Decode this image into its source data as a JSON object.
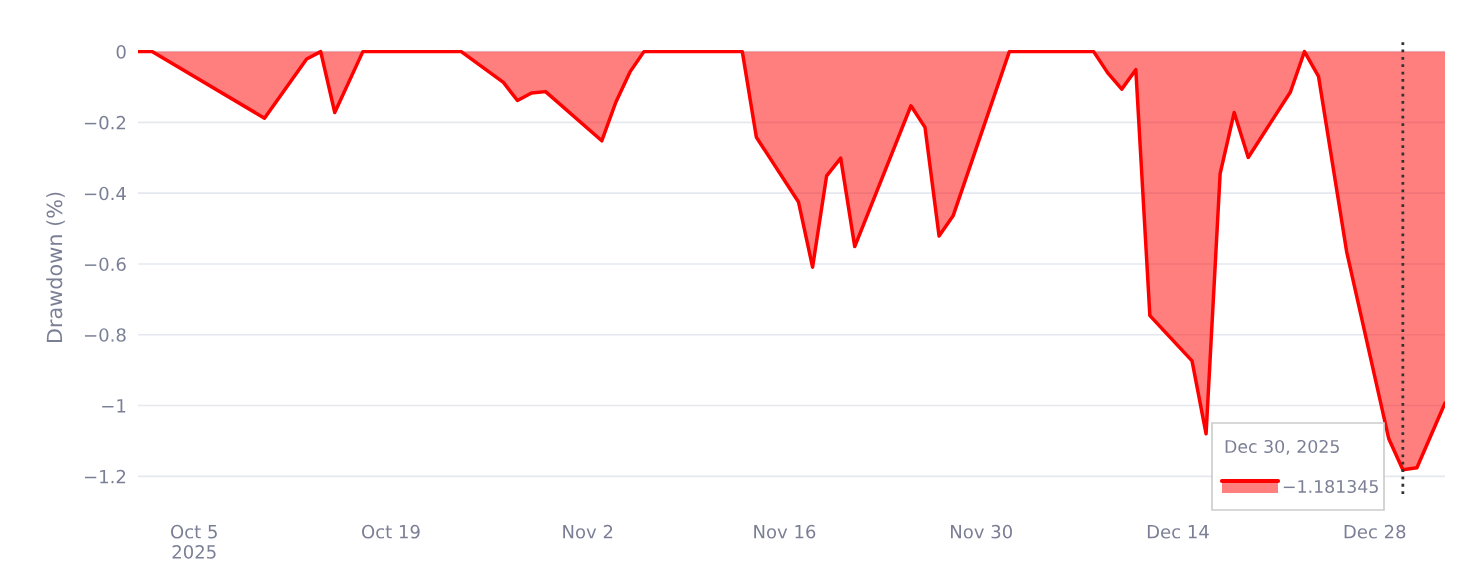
{
  "chart_data": {
    "type": "area",
    "ylabel": "Drawdown (%)",
    "x": [
      "2025-10-01",
      "2025-10-02",
      "2025-10-10",
      "2025-10-13",
      "2025-10-14",
      "2025-10-15",
      "2025-10-17",
      "2025-10-24",
      "2025-10-27",
      "2025-10-28",
      "2025-10-29",
      "2025-10-30",
      "2025-11-03",
      "2025-11-04",
      "2025-11-05",
      "2025-11-06",
      "2025-11-13",
      "2025-11-14",
      "2025-11-17",
      "2025-11-18",
      "2025-11-19",
      "2025-11-20",
      "2025-11-21",
      "2025-11-25",
      "2025-11-26",
      "2025-11-27",
      "2025-11-28",
      "2025-12-02",
      "2025-12-08",
      "2025-12-09",
      "2025-12-10",
      "2025-12-11",
      "2025-12-12",
      "2025-12-15",
      "2025-12-16",
      "2025-12-17",
      "2025-12-18",
      "2025-12-19",
      "2025-12-22",
      "2025-12-23",
      "2025-12-24",
      "2025-12-26",
      "2025-12-29",
      "2025-12-30",
      "2025-12-31",
      "2026-01-02"
    ],
    "series": [
      {
        "color": "#ff0000",
        "values": [
          0,
          0,
          -0.188,
          -0.021,
          0,
          -0.172,
          0,
          0,
          -0.087,
          -0.138,
          -0.117,
          -0.113,
          -0.252,
          -0.143,
          -0.058,
          0,
          0,
          -0.242,
          -0.425,
          -0.609,
          -0.351,
          -0.301,
          -0.551,
          -0.153,
          -0.214,
          -0.521,
          -0.464,
          0,
          0,
          -0.06,
          -0.106,
          -0.051,
          -0.746,
          -0.874,
          -1.08,
          -0.345,
          -0.172,
          -0.299,
          -0.114,
          0,
          -0.07,
          -0.565,
          -1.094,
          -1.181345,
          -1.176,
          -0.993
        ]
      }
    ],
    "xlim": [
      "2025-10-01",
      "2026-01-02"
    ],
    "xticks": [
      {
        "value": "2025-10-05",
        "label": "Oct 5\n2025"
      },
      {
        "value": "2025-10-19",
        "label": "Oct 19"
      },
      {
        "value": "2025-11-02",
        "label": "Nov 2"
      },
      {
        "value": "2025-11-16",
        "label": "Nov 16"
      },
      {
        "value": "2025-11-30",
        "label": "Nov 30"
      },
      {
        "value": "2025-12-14",
        "label": "Dec 14"
      },
      {
        "value": "2025-12-28",
        "label": "Dec 28"
      }
    ],
    "ylim": [
      -1.25,
      0.03
    ],
    "yticks": [
      0,
      {
        "value": -0.2,
        "label": "−0.2"
      },
      {
        "value": -0.4,
        "label": "−0.4"
      },
      {
        "value": -0.6,
        "label": "−0.6"
      },
      {
        "value": -0.8,
        "label": "−0.8"
      },
      {
        "value": -1,
        "label": "−1"
      },
      {
        "value": -1.2,
        "label": "−1.2"
      }
    ],
    "grid": "y",
    "legend": false,
    "marker": "none",
    "line_style": "solid",
    "ref_lines": [
      {
        "axis": "x",
        "value": "2025-12-30",
        "color": "#333333",
        "line_style": "dotted"
      }
    ],
    "annotations": [
      "Dec 30, 2025",
      "−1.181345"
    ]
  }
}
